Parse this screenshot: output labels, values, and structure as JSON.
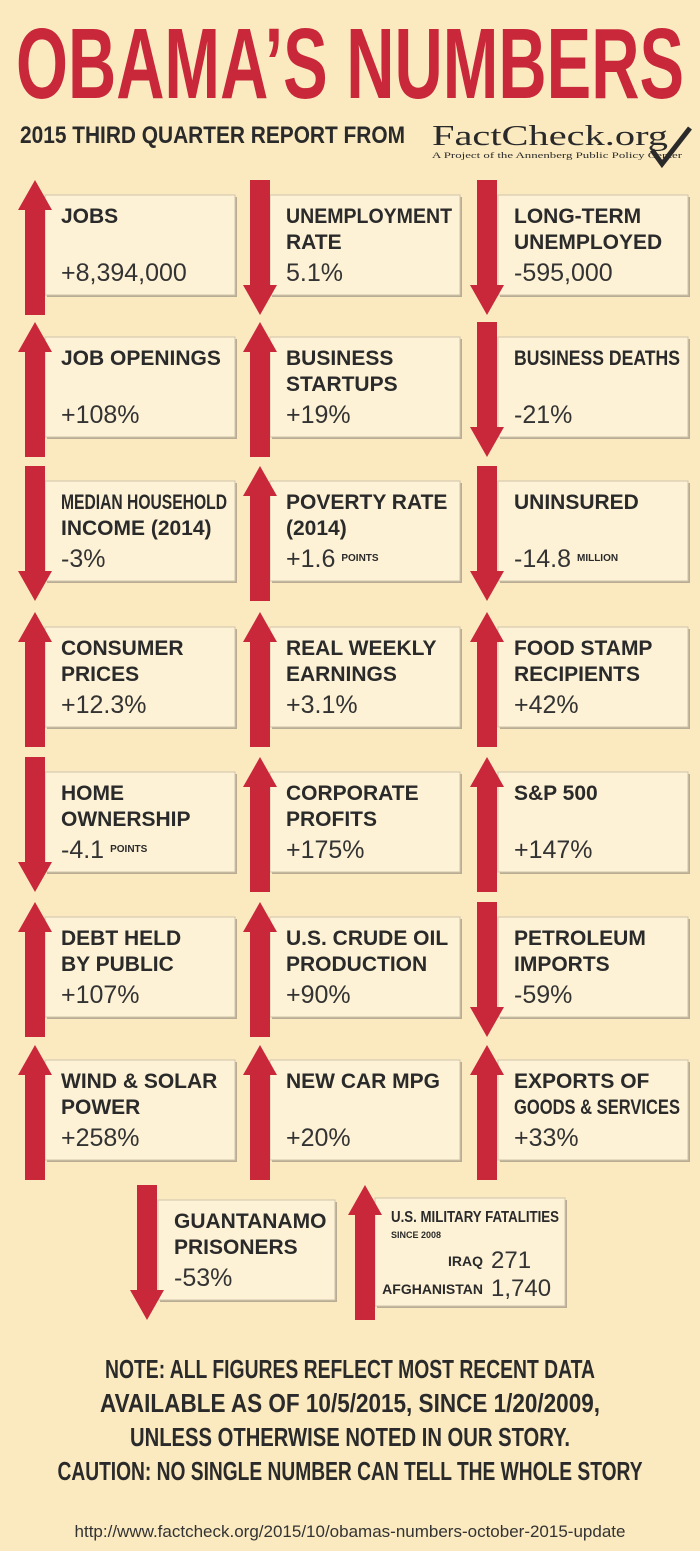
{
  "header": {
    "title": "OBAMA’S NUMBERS",
    "subtitle": "2015 THIRD QUARTER REPORT FROM",
    "logo": {
      "name": "FactCheck.org",
      "tagline": "A Project of the Annenberg Public Policy Center"
    }
  },
  "tiles": [
    {
      "label": [
        "JOBS"
      ],
      "value": "+8,394,000",
      "direction": "up"
    },
    {
      "label": [
        "UNEMPLOYMENT",
        "RATE"
      ],
      "value": "5.1%",
      "direction": "down"
    },
    {
      "label": [
        "LONG-TERM",
        "UNEMPLOYED"
      ],
      "value": "-595,000",
      "direction": "down"
    },
    {
      "label": [
        "JOB OPENINGS"
      ],
      "value": "+108%",
      "direction": "up"
    },
    {
      "label": [
        "BUSINESS",
        "STARTUPS"
      ],
      "value": "+19%",
      "direction": "up"
    },
    {
      "label": [
        "BUSINESS DEATHS"
      ],
      "value": "-21%",
      "direction": "down"
    },
    {
      "label": [
        "MEDIAN HOUSEHOLD",
        "INCOME (2014)"
      ],
      "value": "-3%",
      "direction": "down"
    },
    {
      "label": [
        "POVERTY RATE",
        "(2014)"
      ],
      "value": "+1.6",
      "unit": "POINTS",
      "direction": "up"
    },
    {
      "label": [
        "UNINSURED"
      ],
      "value": "-14.8",
      "unit": "MILLION",
      "direction": "down"
    },
    {
      "label": [
        "CONSUMER",
        "PRICES"
      ],
      "value": "+12.3%",
      "direction": "up"
    },
    {
      "label": [
        "REAL WEEKLY",
        "EARNINGS"
      ],
      "value": "+3.1%",
      "direction": "up"
    },
    {
      "label": [
        "FOOD STAMP",
        "RECIPIENTS"
      ],
      "value": "+42%",
      "direction": "up"
    },
    {
      "label": [
        "HOME",
        "OWNERSHIP"
      ],
      "value": "-4.1",
      "unit": "POINTS",
      "direction": "down"
    },
    {
      "label": [
        "CORPORATE",
        "PROFITS"
      ],
      "value": "+175%",
      "direction": "up"
    },
    {
      "label": [
        "S&P 500"
      ],
      "value": "+147%",
      "direction": "up"
    },
    {
      "label": [
        "DEBT HELD",
        "BY PUBLIC"
      ],
      "value": "+107%",
      "direction": "up"
    },
    {
      "label": [
        "U.S. CRUDE OIL",
        "PRODUCTION"
      ],
      "value": "+90%",
      "direction": "up"
    },
    {
      "label": [
        "PETROLEUM",
        "IMPORTS"
      ],
      "value": "-59%",
      "direction": "down"
    },
    {
      "label": [
        "WIND & SOLAR",
        "POWER"
      ],
      "value": "+258%",
      "direction": "up"
    },
    {
      "label": [
        "NEW CAR MPG"
      ],
      "value": "+20%",
      "direction": "up"
    },
    {
      "label": [
        "EXPORTS OF",
        "GOODS & SERVICES"
      ],
      "value": "+33%",
      "direction": "up"
    },
    {
      "label": [
        "GUANTANAMO",
        "PRISONERS"
      ],
      "value": "-53%",
      "direction": "down"
    }
  ],
  "fatalities": {
    "label": "U.S. MILITARY FATALITIES",
    "sublabel": "SINCE 2008",
    "direction": "up",
    "entries": [
      {
        "name": "IRAQ",
        "value": "271"
      },
      {
        "name": "AFGHANISTAN",
        "value": "1,740"
      }
    ]
  },
  "note": [
    "NOTE:  ALL FIGURES REFLECT MOST RECENT DATA",
    "AVAILABLE AS OF 10/5/2015, SINCE 1/20/2009,",
    "UNLESS OTHERWISE NOTED IN OUR STORY.",
    "CAUTION: NO SINGLE NUMBER CAN TELL THE WHOLE STORY"
  ],
  "url": "http://www.factcheck.org/2015/10/obamas-numbers-october-2015-update"
}
